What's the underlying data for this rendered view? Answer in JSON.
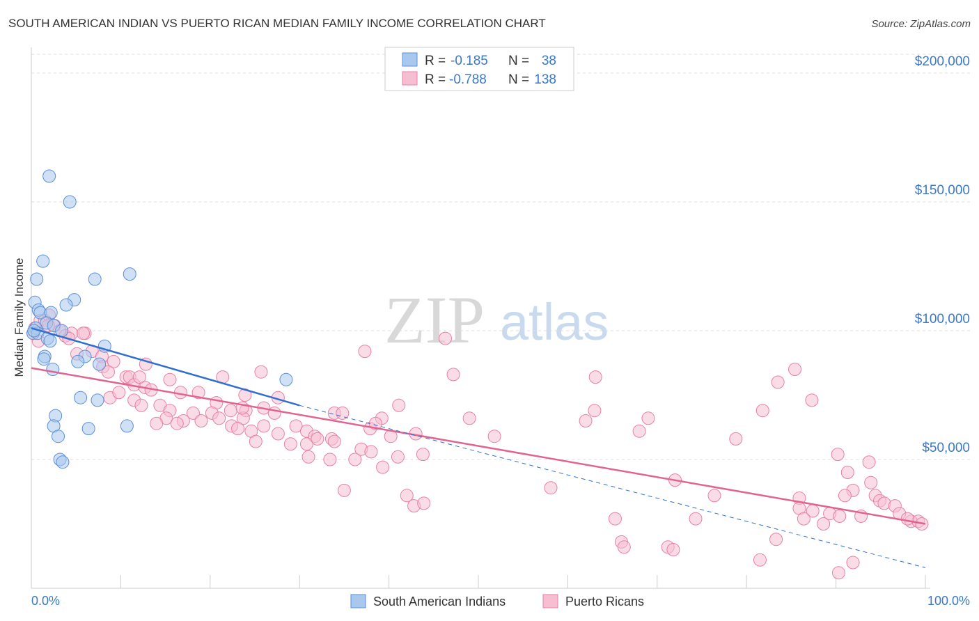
{
  "title": "SOUTH AMERICAN INDIAN VS PUERTO RICAN MEDIAN FAMILY INCOME CORRELATION CHART",
  "source": "Source: ZipAtlas.com",
  "watermark": {
    "zip": "ZIP",
    "atlas": "atlas"
  },
  "colors": {
    "blue_fill": "#aac8ee",
    "blue_stroke": "#5a8fd6",
    "blue_line": "#2f6fcf",
    "pink_fill": "#f6bfd1",
    "pink_stroke": "#e87fa4",
    "pink_line": "#e0648f",
    "axis_text": "#3a78c9",
    "grid": "#dddddd"
  },
  "legend": {
    "rows": [
      {
        "r_label": "R =",
        "r_value": "-0.185",
        "n_label": "N =",
        "n_value": "38"
      },
      {
        "r_label": "R =",
        "r_value": "-0.788",
        "n_label": "N =",
        "n_value": "138"
      }
    ]
  },
  "bottom_legend": [
    "South American Indians",
    "Puerto Ricans"
  ],
  "chart_data": {
    "type": "scatter",
    "title": "SOUTH AMERICAN INDIAN VS PUERTO RICAN MEDIAN FAMILY INCOME CORRELATION CHART",
    "xlabel": "",
    "ylabel": "Median Family Income",
    "xlim": [
      0,
      100
    ],
    "ylim": [
      0,
      210000
    ],
    "x_tick_labels": [
      "0.0%",
      "100.0%"
    ],
    "y_ticks": [
      50000,
      100000,
      150000,
      200000
    ],
    "y_tick_labels": [
      "$50,000",
      "$100,000",
      "$150,000",
      "$200,000"
    ],
    "grid": true,
    "series": [
      {
        "name": "South American Indians",
        "color": "blue",
        "trend": {
          "x0": 0,
          "y0": 101000,
          "x1": 30,
          "y1": 71000,
          "dash_to_x": 100,
          "dash_to_y": 8000
        },
        "points": [
          [
            2,
            160000
          ],
          [
            4.3,
            150000
          ],
          [
            1.3,
            127000
          ],
          [
            0.6,
            120000
          ],
          [
            7.1,
            120000
          ],
          [
            11,
            122000
          ],
          [
            0.4,
            111000
          ],
          [
            4.8,
            112000
          ],
          [
            0.8,
            108000
          ],
          [
            1.0,
            107000
          ],
          [
            2.2,
            107000
          ],
          [
            3.9,
            110000
          ],
          [
            1.7,
            103000
          ],
          [
            2.5,
            102000
          ],
          [
            0.5,
            101000
          ],
          [
            3.4,
            100000
          ],
          [
            0.2,
            99000
          ],
          [
            0.7,
            99000
          ],
          [
            1.8,
            97000
          ],
          [
            2.1,
            96000
          ],
          [
            8.2,
            94000
          ],
          [
            1.5,
            90000
          ],
          [
            1.4,
            89000
          ],
          [
            6.0,
            90000
          ],
          [
            5.2,
            88000
          ],
          [
            7.6,
            87000
          ],
          [
            2.4,
            85000
          ],
          [
            28.5,
            81000
          ],
          [
            5.5,
            74000
          ],
          [
            7.4,
            73000
          ],
          [
            2.7,
            67000
          ],
          [
            2.5,
            63000
          ],
          [
            10.7,
            63000
          ],
          [
            6.4,
            62000
          ],
          [
            3.0,
            59000
          ],
          [
            3.2,
            50000
          ],
          [
            3.5,
            49000
          ],
          [
            0.3,
            100000
          ]
        ]
      },
      {
        "name": "Puerto Ricans",
        "color": "pink",
        "trend": {
          "x0": 0,
          "y0": 85500,
          "x1": 100,
          "y1": 25000
        },
        "points": [
          [
            0.4,
            101000
          ],
          [
            1.0,
            104000
          ],
          [
            1.5,
            104000
          ],
          [
            2.0,
            106000
          ],
          [
            2.6,
            102000
          ],
          [
            0.2,
            99000
          ],
          [
            3.2,
            100000
          ],
          [
            3.8,
            98000
          ],
          [
            4.5,
            99000
          ],
          [
            6.0,
            99000
          ],
          [
            5.8,
            99000
          ],
          [
            4.2,
            97000
          ],
          [
            0.8,
            96000
          ],
          [
            1.9,
            102000
          ],
          [
            6.8,
            92000
          ],
          [
            5.1,
            91000
          ],
          [
            7.9,
            90000
          ],
          [
            9.2,
            88000
          ],
          [
            12.8,
            87000
          ],
          [
            8.0,
            86000
          ],
          [
            8.6,
            84000
          ],
          [
            10.6,
            82000
          ],
          [
            11.0,
            82000
          ],
          [
            15.5,
            81000
          ],
          [
            21.4,
            82000
          ],
          [
            25.7,
            84000
          ],
          [
            11.5,
            79000
          ],
          [
            12.7,
            78000
          ],
          [
            13.4,
            77000
          ],
          [
            16.7,
            76000
          ],
          [
            18.7,
            76000
          ],
          [
            23.9,
            75000
          ],
          [
            8.8,
            74000
          ],
          [
            11.5,
            73000
          ],
          [
            12.3,
            71000
          ],
          [
            14.4,
            71000
          ],
          [
            20.7,
            72000
          ],
          [
            27.6,
            74000
          ],
          [
            15.5,
            69000
          ],
          [
            18.1,
            68000
          ],
          [
            20.2,
            68000
          ],
          [
            22.3,
            69000
          ],
          [
            24.0,
            69000
          ],
          [
            26.0,
            70000
          ],
          [
            27.2,
            68000
          ],
          [
            33.9,
            68000
          ],
          [
            34.8,
            68000
          ],
          [
            15.1,
            66000
          ],
          [
            17.0,
            65000
          ],
          [
            19.0,
            65000
          ],
          [
            21.0,
            66000
          ],
          [
            23.7,
            66000
          ],
          [
            14.0,
            64000
          ],
          [
            16.3,
            64000
          ],
          [
            22.4,
            63000
          ],
          [
            26.0,
            63000
          ],
          [
            29.6,
            63000
          ],
          [
            39.2,
            66000
          ],
          [
            41.1,
            71000
          ],
          [
            49.0,
            66000
          ],
          [
            62.0,
            65000
          ],
          [
            63.0,
            69000
          ],
          [
            69.0,
            66000
          ],
          [
            81.8,
            69000
          ],
          [
            83.5,
            80000
          ],
          [
            85.4,
            85000
          ],
          [
            87.3,
            73000
          ],
          [
            23.1,
            62000
          ],
          [
            24.6,
            61000
          ],
          [
            30.8,
            61000
          ],
          [
            27.6,
            60000
          ],
          [
            31.7,
            59000
          ],
          [
            33.6,
            58000
          ],
          [
            40.2,
            59000
          ],
          [
            43.0,
            60000
          ],
          [
            51.8,
            59000
          ],
          [
            68.0,
            61000
          ],
          [
            78.8,
            58000
          ],
          [
            25.1,
            57000
          ],
          [
            29.0,
            56000
          ],
          [
            30.8,
            56000
          ],
          [
            32.0,
            58000
          ],
          [
            33.9,
            57000
          ],
          [
            36.9,
            54000
          ],
          [
            38.0,
            53000
          ],
          [
            31.0,
            51000
          ],
          [
            33.4,
            50000
          ],
          [
            36.2,
            50000
          ],
          [
            41.0,
            51000
          ],
          [
            43.8,
            52000
          ],
          [
            39.3,
            47000
          ],
          [
            72.0,
            42000
          ],
          [
            90.2,
            52000
          ],
          [
            93.7,
            49000
          ],
          [
            91.3,
            45000
          ],
          [
            91.9,
            38000
          ],
          [
            93.9,
            41000
          ],
          [
            94.4,
            36000
          ],
          [
            35.0,
            38000
          ],
          [
            42.0,
            36000
          ],
          [
            58.1,
            39000
          ],
          [
            76.4,
            36000
          ],
          [
            85.9,
            35000
          ],
          [
            91.0,
            36000
          ],
          [
            94.9,
            34000
          ],
          [
            95.4,
            33000
          ],
          [
            96.6,
            32000
          ],
          [
            87.4,
            30000
          ],
          [
            89.3,
            29000
          ],
          [
            90.4,
            28000
          ],
          [
            92.8,
            28000
          ],
          [
            85.9,
            31000
          ],
          [
            86.4,
            27000
          ],
          [
            97.1,
            29000
          ],
          [
            98.4,
            26000
          ],
          [
            99.2,
            26000
          ],
          [
            98.0,
            27000
          ],
          [
            74.3,
            27000
          ],
          [
            65.3,
            27000
          ],
          [
            88.6,
            25000
          ],
          [
            99.6,
            25000
          ],
          [
            42.8,
            32000
          ],
          [
            43.9,
            33000
          ],
          [
            66.0,
            18000
          ],
          [
            66.3,
            16000
          ],
          [
            71.2,
            16000
          ],
          [
            71.8,
            15000
          ],
          [
            83.3,
            19000
          ],
          [
            81.5,
            11000
          ],
          [
            91.9,
            10000
          ],
          [
            90.3,
            6000
          ],
          [
            63.1,
            82000
          ],
          [
            37.3,
            92000
          ],
          [
            46.3,
            97000
          ],
          [
            47.2,
            83000
          ],
          [
            37.9,
            62000
          ],
          [
            38.5,
            64000
          ],
          [
            9.8,
            76000
          ],
          [
            12.1,
            82000
          ],
          [
            23.6,
            70000
          ]
        ]
      }
    ]
  }
}
